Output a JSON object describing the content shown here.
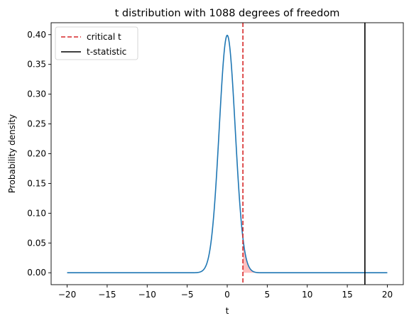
{
  "chart_data": {
    "type": "line",
    "title": "t distribution with 1088 degrees of freedom",
    "xlabel": "t",
    "ylabel": "Probability density",
    "xlim": [
      -22,
      22
    ],
    "ylim": [
      -0.02,
      0.42
    ],
    "xticks": [
      -20,
      -15,
      -10,
      -5,
      0,
      5,
      10,
      15,
      20
    ],
    "yticks": [
      0.0,
      0.05,
      0.1,
      0.15,
      0.2,
      0.25,
      0.3,
      0.35,
      0.4
    ],
    "xtick_labels": [
      "−20",
      "−15",
      "−10",
      "−5",
      "0",
      "5",
      "10",
      "15",
      "20"
    ],
    "ytick_labels": [
      "0.00",
      "0.05",
      "0.10",
      "0.15",
      "0.20",
      "0.25",
      "0.30",
      "0.35",
      "0.40"
    ],
    "degrees_of_freedom": 1088,
    "x_range": [
      -20,
      20
    ],
    "series": [
      {
        "kind": "t-density",
        "color": "#1f77b4"
      }
    ],
    "critical_t": 1.96,
    "t_statistic": 17.2,
    "shaded_region": {
      "from": 1.96,
      "to": 20,
      "color": "#ff0000",
      "alpha": 0.25
    },
    "grid": false,
    "legend": {
      "placement": "top-left",
      "entries": [
        {
          "label": "critical t",
          "color": "#d62728",
          "style": "dashed"
        },
        {
          "label": "t-statistic",
          "color": "#000000",
          "style": "solid"
        }
      ]
    }
  }
}
